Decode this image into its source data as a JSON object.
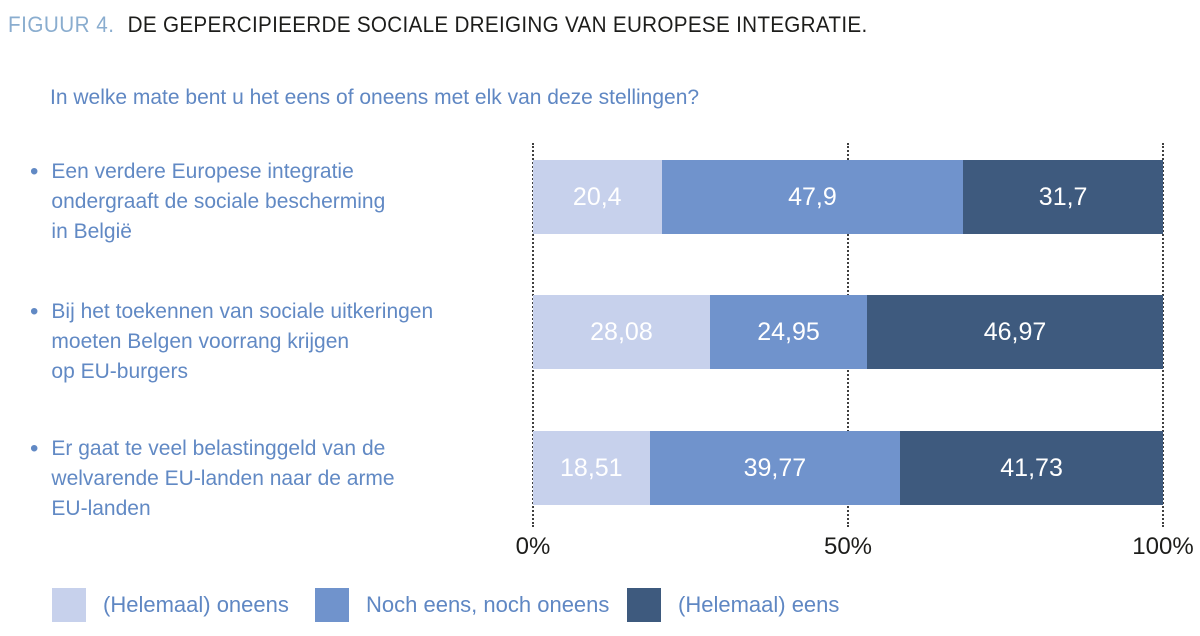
{
  "header": {
    "figure_label": "FIGUUR 4.",
    "title": "DE GEPERCIPIEERDE SOCIALE DREIGING VAN EUROPESE INTEGRATIE.",
    "question": "In welke mate bent u het eens of oneens met elk van deze stellingen?"
  },
  "bullet_glyph": "•",
  "colors": {
    "figure_label": "#8aadcf",
    "title": "#1d1d1b",
    "question": "#5f87c3",
    "category": "#6189c4",
    "legend_text": "#5f87c3",
    "axis": "#1d1d1b",
    "gridline": "#3f3f3f",
    "value_label": "#ffffff"
  },
  "chart_data": {
    "type": "bar",
    "orientation": "horizontal",
    "stacked": true,
    "title": "DE GEPERCIPIEERDE SOCIALE DREIGING VAN EUROPESE INTEGRATIE.",
    "subtitle": "In welke mate bent u het eens of oneens met elk van deze stellingen?",
    "categories": [
      "Een verdere Europese integratie\nondergraaft de sociale bescherming\nin België",
      "Bij het toekennen van sociale uitkeringen\nmoeten Belgen voorrang krijgen\nop EU-burgers",
      "Er gaat te veel belastinggeld van de\nwelvarende EU-landen naar de arme\nEU-landen"
    ],
    "series": [
      {
        "name": "(Helemaal) oneens",
        "color": "#c7d1ec",
        "values": [
          20.4,
          28.08,
          18.51
        ],
        "labels": [
          "20,4",
          "28,08",
          "18,51"
        ]
      },
      {
        "name": "Noch eens, noch oneens",
        "color": "#7093cc",
        "values": [
          47.9,
          24.95,
          39.77
        ],
        "labels": [
          "47,9",
          "24,95",
          "39,77"
        ]
      },
      {
        "name": "(Helemaal) eens",
        "color": "#3e5a7e",
        "values": [
          31.7,
          46.97,
          41.73
        ],
        "labels": [
          "31,7",
          "46,97",
          "41,73"
        ]
      }
    ],
    "xlim": [
      0,
      100
    ],
    "x_ticks": [
      "0%",
      "50%",
      "100%"
    ],
    "gridlines_at": [
      0,
      50,
      100
    ],
    "grid_style": "dotted-vertical",
    "legend_position": "bottom",
    "value_labels": "inside-white"
  }
}
